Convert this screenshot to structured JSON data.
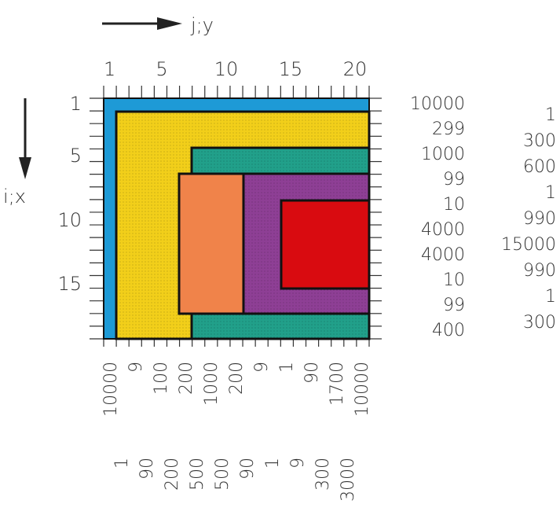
{
  "axes": {
    "j_label": "j;y",
    "i_label": "i;x",
    "top_ticks": [
      "1",
      "5",
      "10",
      "15",
      "20"
    ],
    "left_ticks": [
      "1",
      "5",
      "10",
      "15"
    ]
  },
  "right_values_col1": [
    "10000",
    "299",
    "1000",
    "99",
    "10",
    "4000",
    "4000",
    "10",
    "99",
    "400"
  ],
  "right_values_col2": [
    "1",
    "300",
    "600",
    "1",
    "990",
    "15000",
    "990",
    "1",
    "300"
  ],
  "bottom_values_row1": [
    "10000",
    "9",
    "100",
    "200",
    "1000",
    "200",
    "9",
    "1",
    "90",
    "1700",
    "10000"
  ],
  "bottom_values_row2": [
    "1",
    "90",
    "200",
    "500",
    "500",
    "90",
    "1",
    "9",
    "300",
    "3000"
  ],
  "colors": {
    "blue": "#1e9ad6",
    "yellow": "#f2cf1a",
    "teal": "#21a08a",
    "orange": "#f0834a",
    "purple": "#8e3f95",
    "red": "#d90b10"
  }
}
